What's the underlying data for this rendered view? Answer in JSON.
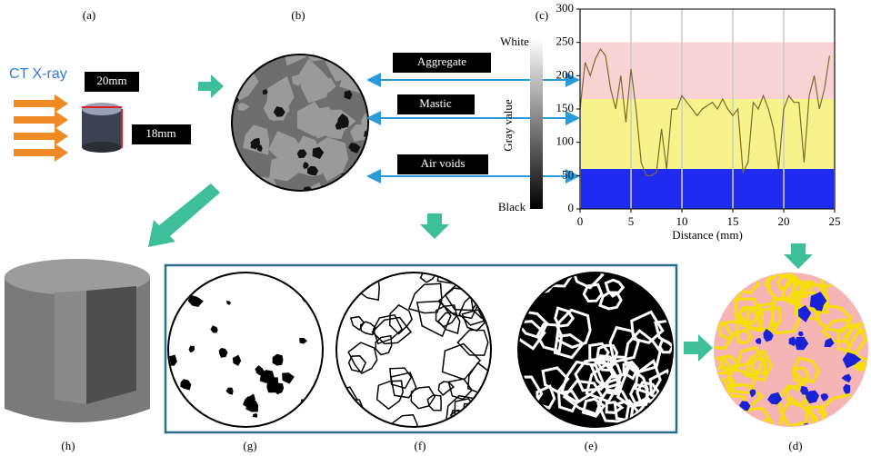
{
  "panel_a": {
    "label": "(a)",
    "source": "CT X-ray",
    "width": "20mm",
    "height": "18mm"
  },
  "panel_b": {
    "label": "(b)",
    "phases": [
      "Aggregate",
      "Mastic",
      "Air voids"
    ]
  },
  "colorbar": {
    "top": "White",
    "bottom": "Black",
    "title": "Gray value"
  },
  "chart_data": {
    "type": "line",
    "label": "(c)",
    "x_label": "Distance (mm)",
    "xlim": [
      0,
      25
    ],
    "xticks": [
      0,
      5,
      10,
      15,
      20,
      25
    ],
    "ylim": [
      0,
      300
    ],
    "yticks": [
      0,
      50,
      100,
      150,
      200,
      250,
      300
    ],
    "grid": "x",
    "color": "#7d6a2e",
    "bands": [
      {
        "from": 165,
        "to": 250,
        "color": "#f7d3d3"
      },
      {
        "from": 60,
        "to": 165,
        "color": "#f6f38a"
      },
      {
        "from": 0,
        "to": 60,
        "color": "#1f2bf0"
      }
    ],
    "x": [
      0,
      0.5,
      1,
      1.5,
      2,
      2.5,
      3,
      3.5,
      4,
      4.5,
      5,
      5.5,
      6,
      6.5,
      7,
      7.5,
      8,
      8.5,
      9,
      9.5,
      10,
      10.5,
      11,
      11.5,
      12,
      12.5,
      13,
      13.5,
      14,
      14.5,
      15,
      15.5,
      16,
      16.5,
      17,
      17.5,
      18,
      18.5,
      19,
      19.5,
      20,
      20.5,
      21,
      21.5,
      22,
      22.5,
      23,
      23.5,
      24,
      24.5
    ],
    "values": [
      150,
      220,
      200,
      225,
      240,
      230,
      180,
      150,
      200,
      130,
      210,
      150,
      70,
      50,
      50,
      55,
      120,
      60,
      150,
      150,
      170,
      160,
      150,
      140,
      150,
      155,
      160,
      150,
      165,
      150,
      140,
      150,
      55,
      70,
      160,
      150,
      170,
      150,
      120,
      60,
      150,
      170,
      160,
      160,
      70,
      170,
      200,
      150,
      180,
      230
    ]
  },
  "panel_labels": {
    "d": "(d)",
    "e": "(e)",
    "f": "(f)",
    "g": "(g)",
    "h": "(h)"
  }
}
